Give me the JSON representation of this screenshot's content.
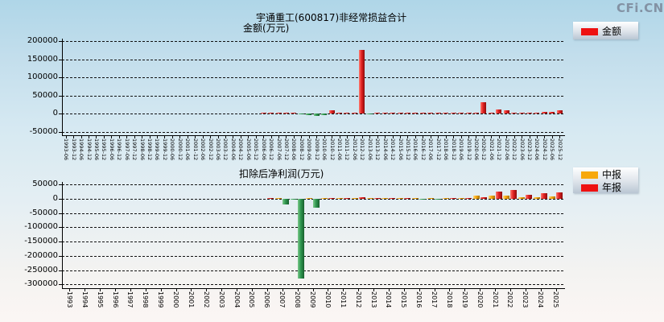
{
  "logo": "CFi.CN",
  "top_chart": {
    "title": "宇通重工(600817)非经常损益合计",
    "subtitle": "金额(万元)",
    "legend": [
      {
        "label": "金额",
        "color": "#ee1111"
      }
    ],
    "chart_data": {
      "type": "bar",
      "title": "宇通重工(600817)非经常损益合计 金额(万元)",
      "ylabel": "金额(万元)",
      "ylim": [
        -50000,
        200000
      ],
      "yticks": [
        200000,
        150000,
        100000,
        50000,
        0,
        -50000
      ],
      "grid": "horizontal-dashed",
      "legend_position": "top-right",
      "positive_color": "#e32222",
      "negative_color": "#2f9750",
      "categories": [
        "1993-06",
        "1993-12",
        "1994-06",
        "1994-12",
        "1995-06",
        "1995-12",
        "1996-06",
        "1996-12",
        "1997-06",
        "1997-12",
        "1998-06",
        "1998-12",
        "1999-06",
        "1999-12",
        "2000-06",
        "2000-12",
        "2001-06",
        "2001-12",
        "2002-06",
        "2002-12",
        "2003-06",
        "2003-12",
        "2004-06",
        "2004-12",
        "2005-06",
        "2005-12",
        "2006-06",
        "2006-12",
        "2007-06",
        "2007-12",
        "2008-06",
        "2008-12",
        "2009-06",
        "2009-12",
        "2010-06",
        "2010-12",
        "2011-06",
        "2011-12",
        "2012-06",
        "2012-12",
        "2013-06",
        "2013-12",
        "2014-06",
        "2014-12",
        "2015-06",
        "2015-12",
        "2016-06",
        "2016-12",
        "2017-06",
        "2017-12",
        "2018-06",
        "2018-12",
        "2019-06",
        "2019-12",
        "2020-06",
        "2020-12",
        "2021-06",
        "2021-12",
        "2022-06",
        "2022-12",
        "2023-06",
        "2023-12",
        "2024-06",
        "2024-12",
        "2025-06",
        "2025-12"
      ],
      "series": [
        {
          "name": "金额",
          "values": [
            0,
            0,
            0,
            0,
            0,
            0,
            0,
            0,
            0,
            0,
            0,
            0,
            0,
            0,
            0,
            0,
            0,
            0,
            0,
            0,
            0,
            0,
            0,
            0,
            0,
            0,
            1500,
            2000,
            2000,
            2500,
            1000,
            -3000,
            -5000,
            -7000,
            -4000,
            10000,
            1500,
            2000,
            2000,
            175000,
            -1000,
            2000,
            1500,
            2000,
            1500,
            2000,
            1500,
            2000,
            1500,
            2000,
            500,
            1500,
            1500,
            2000,
            2000,
            32000,
            3000,
            12000,
            8000,
            3000,
            2000,
            2000,
            2000,
            4000,
            5000,
            10000
          ]
        }
      ]
    }
  },
  "bottom_chart": {
    "title": "扣除后净利润(万元)",
    "legend": [
      {
        "label": "中报",
        "color": "#f7a80b"
      },
      {
        "label": "年报",
        "color": "#ee1111"
      }
    ],
    "chart_data": {
      "type": "bar",
      "title": "扣除后净利润(万元)",
      "ylabel": "扣除后净利润(万元)",
      "ylim": [
        -300000,
        50000
      ],
      "yticks": [
        50000,
        0,
        -50000,
        -100000,
        -150000,
        -200000,
        -250000,
        -300000
      ],
      "grid": "horizontal-dashed",
      "legend_position": "top-right",
      "negative_color": "#2f9750",
      "categories": [
        "1993",
        "1994",
        "1995",
        "1996",
        "1997",
        "1998",
        "1999",
        "2000",
        "2001",
        "2002",
        "2003",
        "2004",
        "2005",
        "2006",
        "2007",
        "2008",
        "2009",
        "2010",
        "2011",
        "2012",
        "2013",
        "2014",
        "2015",
        "2016",
        "2017",
        "2018",
        "2019",
        "2020",
        "2021",
        "2022",
        "2023",
        "2024",
        "2025"
      ],
      "series": [
        {
          "name": "中报",
          "color": "#f7a80b",
          "values": [
            0,
            0,
            0,
            0,
            0,
            0,
            0,
            0,
            0,
            0,
            0,
            0,
            0,
            0,
            3000,
            -1000,
            2000,
            2500,
            1000,
            2000,
            4000,
            4000,
            3500,
            500,
            500,
            2500,
            3000,
            11000,
            10000,
            11000,
            6000,
            7000,
            9000
          ]
        },
        {
          "name": "年报",
          "color": "#e32222",
          "values": [
            0,
            0,
            0,
            0,
            0,
            0,
            0,
            0,
            0,
            0,
            0,
            0,
            0,
            1000,
            -21000,
            -280000,
            -30000,
            2000,
            1000,
            5000,
            2000,
            2000,
            1500,
            -1000,
            -1000,
            3000,
            4000,
            5000,
            25000,
            30000,
            14000,
            20000,
            23000
          ]
        }
      ]
    }
  }
}
